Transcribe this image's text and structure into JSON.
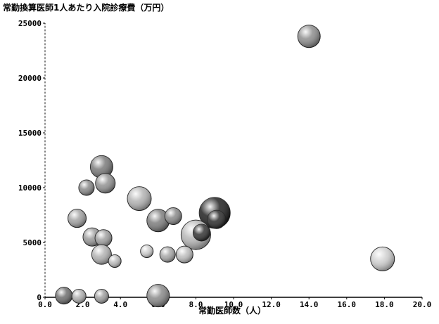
{
  "chart_data": {
    "type": "scatter",
    "title": "常勤換算医師1人あたり入院診療費（万円）",
    "xlabel": "常勤医師数（人）",
    "ylabel": "",
    "xlim": [
      0,
      20
    ],
    "ylim": [
      0,
      25000
    ],
    "x_ticks": [
      "0.0",
      "2.0",
      "4.0",
      "6.0",
      "8.0",
      "10.0",
      "12.0",
      "14.0",
      "16.0",
      "18.0",
      "20.0"
    ],
    "y_ticks": [
      "0",
      "5000",
      "10000",
      "15000",
      "20000",
      "25000"
    ],
    "grid": false,
    "legend": "none",
    "marker": "bubble",
    "points": [
      {
        "x": 14.0,
        "y": 23800,
        "size": 16,
        "color": "#8e8e8e"
      },
      {
        "x": 3.0,
        "y": 11900,
        "size": 16,
        "color": "#7a7a7a"
      },
      {
        "x": 2.2,
        "y": 10000,
        "size": 11,
        "color": "#8a8a8a"
      },
      {
        "x": 3.2,
        "y": 10400,
        "size": 14,
        "color": "#929292"
      },
      {
        "x": 5.0,
        "y": 9000,
        "size": 17,
        "color": "#b3b3b3"
      },
      {
        "x": 1.7,
        "y": 7200,
        "size": 13,
        "color": "#a3a3a3"
      },
      {
        "x": 6.0,
        "y": 7000,
        "size": 16,
        "color": "#7d7d7d"
      },
      {
        "x": 6.8,
        "y": 7400,
        "size": 12,
        "color": "#8a8a8a"
      },
      {
        "x": 9.0,
        "y": 7700,
        "size": 22,
        "color": "#202020"
      },
      {
        "x": 9.1,
        "y": 7100,
        "size": 13,
        "color": "#2b2b2b"
      },
      {
        "x": 8.0,
        "y": 5700,
        "size": 21,
        "color": "#b8b8b8"
      },
      {
        "x": 8.3,
        "y": 5900,
        "size": 12,
        "color": "#333333"
      },
      {
        "x": 2.5,
        "y": 5500,
        "size": 13,
        "color": "#9a9a9a"
      },
      {
        "x": 3.1,
        "y": 5400,
        "size": 12,
        "color": "#a0a0a0"
      },
      {
        "x": 3.0,
        "y": 3900,
        "size": 14,
        "color": "#b2b2b2"
      },
      {
        "x": 3.7,
        "y": 3300,
        "size": 9,
        "color": "#bdbdbd"
      },
      {
        "x": 5.4,
        "y": 4200,
        "size": 9,
        "color": "#cfcfcf"
      },
      {
        "x": 6.5,
        "y": 3900,
        "size": 11,
        "color": "#a8a8a8"
      },
      {
        "x": 7.4,
        "y": 3900,
        "size": 12,
        "color": "#bebebe"
      },
      {
        "x": 17.9,
        "y": 3500,
        "size": 17,
        "color": "#d0d0d0"
      },
      {
        "x": 1.0,
        "y": 150,
        "size": 12,
        "color": "#6e6e6e"
      },
      {
        "x": 1.8,
        "y": 100,
        "size": 10,
        "color": "#b0b0b0"
      },
      {
        "x": 3.0,
        "y": 100,
        "size": 10,
        "color": "#a0a0a0"
      },
      {
        "x": 6.0,
        "y": 150,
        "size": 16,
        "color": "#8a8a8a"
      }
    ]
  }
}
